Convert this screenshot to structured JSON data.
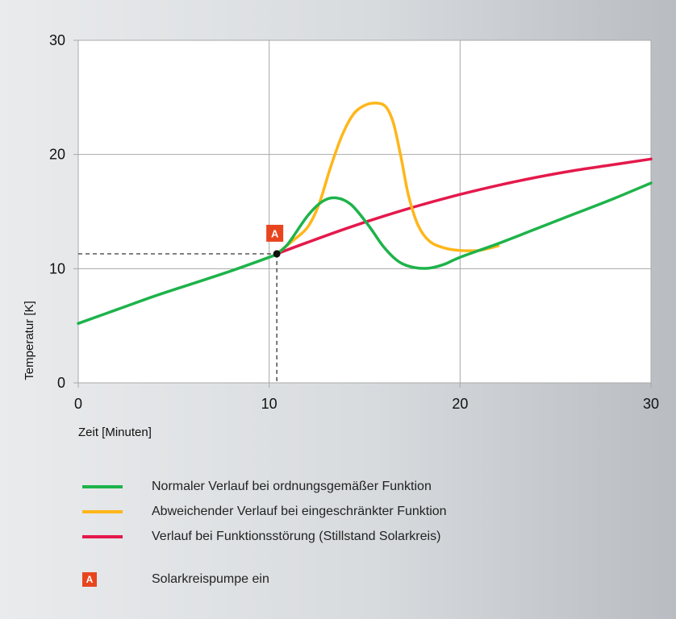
{
  "chart_data": {
    "type": "line",
    "xlabel": "Zeit [Minuten]",
    "ylabel": "Temperatur [K]",
    "xlim": [
      0,
      30
    ],
    "ylim": [
      0,
      30
    ],
    "x_ticks": [
      "0",
      "10",
      "20",
      "30"
    ],
    "y_ticks": [
      "0",
      "10",
      "20",
      "30"
    ],
    "grid": true,
    "series": [
      {
        "name": "Normaler Verlauf bei ordnungsgemäßer Funktion",
        "color": "#1db34a",
        "points": [
          [
            0,
            5.2
          ],
          [
            2,
            6.4
          ],
          [
            4,
            7.6
          ],
          [
            6,
            8.7
          ],
          [
            8,
            9.8
          ],
          [
            10,
            11.0
          ],
          [
            10.4,
            11.3
          ],
          [
            11,
            12.2
          ],
          [
            12,
            14.6
          ],
          [
            12.8,
            15.9
          ],
          [
            13.5,
            16.2
          ],
          [
            14.3,
            15.6
          ],
          [
            15.2,
            13.8
          ],
          [
            16,
            11.9
          ],
          [
            16.8,
            10.6
          ],
          [
            17.6,
            10.1
          ],
          [
            18.4,
            10.05
          ],
          [
            19.2,
            10.4
          ],
          [
            20,
            11.0
          ],
          [
            22,
            12.2
          ],
          [
            24,
            13.5
          ],
          [
            26,
            14.8
          ],
          [
            28,
            16.1
          ],
          [
            30,
            17.5
          ]
        ]
      },
      {
        "name": "Abweichender Verlauf bei eingeschränkter Funktion",
        "color": "#ffb619",
        "points": [
          [
            10.4,
            11.3
          ],
          [
            11.2,
            12.4
          ],
          [
            12,
            13.6
          ],
          [
            12.6,
            15.6
          ],
          [
            13.2,
            18.8
          ],
          [
            13.8,
            21.6
          ],
          [
            14.4,
            23.5
          ],
          [
            15,
            24.3
          ],
          [
            15.6,
            24.5
          ],
          [
            16.1,
            24.2
          ],
          [
            16.5,
            22.8
          ],
          [
            16.9,
            19.8
          ],
          [
            17.3,
            16.4
          ],
          [
            17.8,
            13.8
          ],
          [
            18.4,
            12.4
          ],
          [
            19.2,
            11.8
          ],
          [
            20,
            11.6
          ],
          [
            21,
            11.6
          ],
          [
            22,
            12.0
          ]
        ]
      },
      {
        "name": "Verlauf bei Funktionsstörung (Stillstand Solarkreis)",
        "color": "#e4194b",
        "points": [
          [
            10.4,
            11.3
          ],
          [
            12,
            12.3
          ],
          [
            14,
            13.5
          ],
          [
            16,
            14.6
          ],
          [
            18,
            15.6
          ],
          [
            20,
            16.5
          ],
          [
            22,
            17.3
          ],
          [
            24,
            18.0
          ],
          [
            26,
            18.6
          ],
          [
            28,
            19.1
          ],
          [
            30,
            19.6
          ]
        ]
      }
    ],
    "annotation": {
      "label": "A",
      "x": 10.4,
      "y": 11.3,
      "description": "Solarkreispumpe ein",
      "color": "#e8451e"
    }
  }
}
